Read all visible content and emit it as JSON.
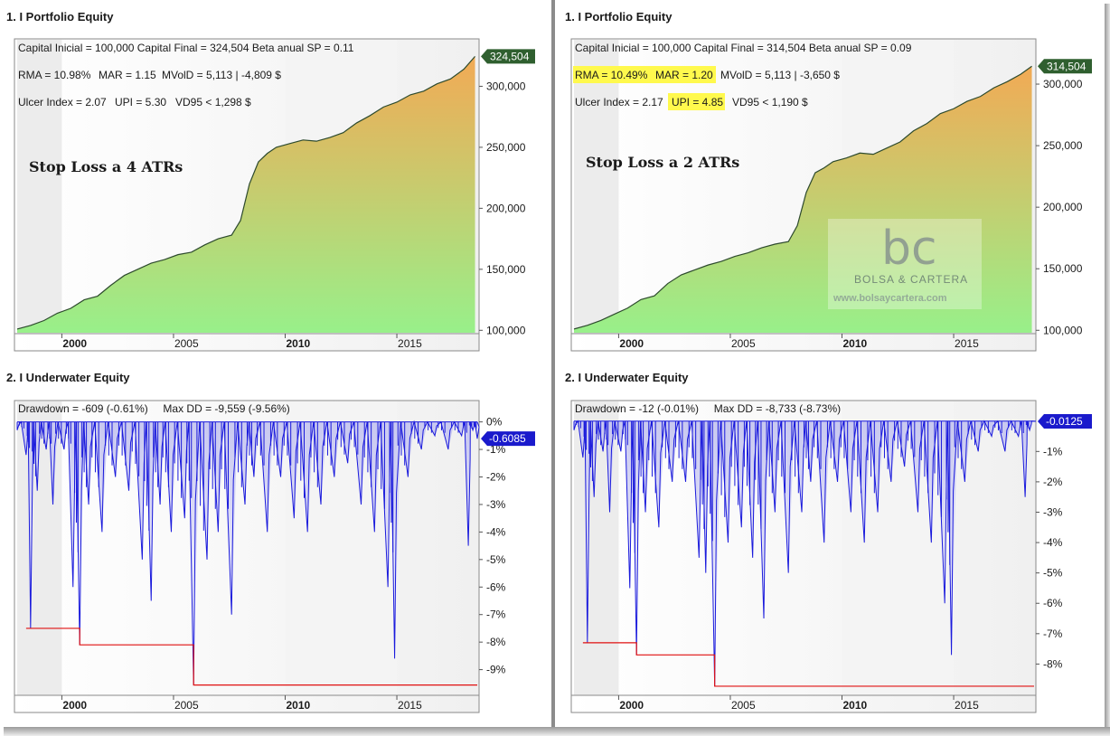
{
  "colors": {
    "equity_top": "#f2aa55",
    "equity_bottom": "#98f08a",
    "equity_line": "#2d4a2d",
    "flag_equity": "#2f5f2f",
    "underwater_line": "#1a1adc",
    "underwater_fill": "#c8c8f0",
    "maxdd_line": "#e01010",
    "flag_underwater": "#1a1acc",
    "highlight": "#fff94d"
  },
  "left": {
    "equity": {
      "title": "1. I Portfolio Equity",
      "info_line1": "Capital Inicial = 100,000  Capital Final = 324,504  Beta anual SP = 0.11",
      "info_line2": {
        "rma": "RMA = 10.98%",
        "mar": "MAR = 1.15",
        "rest": "MVolD = 5,113 | -4,809 $"
      },
      "info_line3": {
        "ulcer": "Ulcer Index = 2.07",
        "upi": "UPI = 5.30",
        "rest": "VD95 < 1,298 $"
      },
      "annotation": "Stop Loss a 4 ATRs",
      "last_value_label": "324,504"
    },
    "underwater": {
      "title": "2. I Underwater Equity",
      "info": "Drawdown = -609 (-0.61%)     Max DD = -9,559 (-9.56%)",
      "last_value_label": "-0.6085"
    }
  },
  "right": {
    "equity": {
      "title": "1. I Portfolio Equity",
      "info_line1": "Capital Inicial = 100,000  Capital Final = 314,504  Beta anual SP = 0.09",
      "info_line2": {
        "rma": "RMA = 10.49%",
        "mar": "MAR = 1.20",
        "rest": "MVolD = 5,113 | -3,650 $"
      },
      "info_line3": {
        "ulcer": "Ulcer Index = 2.17",
        "upi": "UPI = 4.85",
        "rest": "VD95 < 1,190 $"
      },
      "annotation": "Stop Loss a 2 ATRs",
      "last_value_label": "314,504"
    },
    "underwater": {
      "title": "2. I Underwater Equity",
      "info": "Drawdown = -12 (-0.01%)     Max DD = -8,733 (-8.73%)",
      "last_value_label": "-0.0125"
    }
  },
  "watermark": {
    "logo": "bc",
    "name": "BOLSA & CARTERA",
    "url": "www.bolsaycartera.com"
  },
  "chart_data": [
    {
      "type": "area",
      "title": "1. I Portfolio Equity",
      "annotation": "Stop Loss a 4 ATRs",
      "x_ticks": [
        "2000",
        "2005",
        "2010",
        "2015"
      ],
      "y_ticks": [
        "100,000",
        "150,000",
        "200,000",
        "250,000",
        "300,000"
      ],
      "xlim": [
        1998.0,
        2018.6
      ],
      "ylim": [
        98000,
        327000
      ],
      "grid": false,
      "series": [
        {
          "x": [
            1998.0,
            1998.6,
            1999.2,
            1999.8,
            2000.4,
            2001.0,
            2001.6,
            2002.2,
            2002.8,
            2003.4,
            2004.0,
            2004.6,
            2005.2,
            2005.8,
            2006.4,
            2007.0,
            2007.6,
            2008.0,
            2008.4,
            2008.8,
            2009.2,
            2009.6,
            2010.2,
            2010.8,
            2011.4,
            2012.0,
            2012.6,
            2013.2,
            2013.8,
            2014.4,
            2015.0,
            2015.6,
            2016.2,
            2016.8,
            2017.4,
            2018.0,
            2018.5
          ],
          "y": [
            101000,
            104000,
            108000,
            114000,
            118000,
            125000,
            128000,
            137000,
            145000,
            150000,
            155000,
            158000,
            162000,
            164000,
            170000,
            175000,
            178000,
            190000,
            220000,
            238000,
            245000,
            250000,
            253000,
            256000,
            255000,
            258000,
            262000,
            270000,
            276000,
            283000,
            287000,
            293000,
            296000,
            302000,
            306000,
            314000,
            324504
          ]
        }
      ]
    },
    {
      "type": "area",
      "title": "1. I Portfolio Equity",
      "annotation": "Stop Loss a 2 ATRs",
      "x_ticks": [
        "2000",
        "2005",
        "2010",
        "2015"
      ],
      "y_ticks": [
        "100,000",
        "150,000",
        "200,000",
        "250,000",
        "300,000"
      ],
      "xlim": [
        1998.0,
        2018.6
      ],
      "ylim": [
        98000,
        325000
      ],
      "grid": false,
      "series": [
        {
          "x": [
            1998.0,
            1998.6,
            1999.2,
            1999.8,
            2000.4,
            2001.0,
            2001.6,
            2002.2,
            2002.8,
            2003.4,
            2004.0,
            2004.6,
            2005.2,
            2005.8,
            2006.4,
            2007.0,
            2007.6,
            2008.0,
            2008.4,
            2008.8,
            2009.2,
            2009.6,
            2010.2,
            2010.8,
            2011.4,
            2012.0,
            2012.6,
            2013.2,
            2013.8,
            2014.4,
            2015.0,
            2015.6,
            2016.2,
            2016.8,
            2017.4,
            2018.0,
            2018.5
          ],
          "y": [
            101000,
            104000,
            108000,
            113000,
            118000,
            125000,
            128000,
            138000,
            145000,
            149000,
            153000,
            156000,
            160000,
            163000,
            167000,
            170000,
            172000,
            185000,
            212000,
            228000,
            232000,
            237000,
            240000,
            244000,
            243000,
            248000,
            253000,
            262000,
            268000,
            276000,
            280000,
            286000,
            290000,
            297000,
            302000,
            308000,
            314504
          ]
        }
      ]
    },
    {
      "type": "area",
      "title": "2. I Underwater Equity",
      "x_ticks": [
        "2000",
        "2005",
        "2010",
        "2015"
      ],
      "y_ticks": [
        "0%",
        "-1%",
        "-2%",
        "-3%",
        "-4%",
        "-5%",
        "-6%",
        "-7%",
        "-8%",
        "-9%"
      ],
      "xlim": [
        1998.0,
        2018.6
      ],
      "ylim": [
        -9.9,
        0.25
      ],
      "grid": false,
      "series": [
        {
          "name": "Drawdown %",
          "x": [
            1998.0,
            1998.4,
            1998.6,
            1998.9,
            1999.3,
            1999.6,
            2000.1,
            2000.5,
            2000.8,
            2001.2,
            2001.8,
            2002.4,
            2003.0,
            2003.6,
            2004.0,
            2004.4,
            2004.9,
            2005.5,
            2005.9,
            2006.5,
            2007.0,
            2007.6,
            2008.2,
            2008.6,
            2009.2,
            2009.8,
            2010.4,
            2011.0,
            2011.6,
            2012.2,
            2012.8,
            2013.4,
            2014.0,
            2014.6,
            2014.9,
            2015.5,
            2016.1,
            2016.7,
            2017.3,
            2017.9,
            2018.2,
            2018.4,
            2018.6
          ],
          "y": [
            -0.3,
            -1.2,
            -7.5,
            -2.5,
            -1.0,
            -3.0,
            -1.0,
            -6.0,
            -8.1,
            -3.0,
            -4.0,
            -2.0,
            -2.5,
            -5.0,
            -6.5,
            -3.0,
            -4.0,
            -3.5,
            -9.56,
            -5.0,
            -4.0,
            -7.0,
            -3.0,
            -2.0,
            -4.0,
            -2.0,
            -3.5,
            -4.0,
            -3.0,
            -2.0,
            -1.5,
            -3.0,
            -4.0,
            -6.0,
            -8.6,
            -2.0,
            -1.0,
            -0.5,
            -1.0,
            -0.5,
            -4.5,
            -0.3,
            -0.61
          ]
        },
        {
          "name": "Max DD",
          "x": [
            1998.4,
            2000.8,
            2000.8,
            2005.9,
            2005.9,
            2018.6
          ],
          "y": [
            -7.5,
            -7.5,
            -8.1,
            -8.1,
            -9.56,
            -9.56
          ]
        }
      ]
    },
    {
      "type": "area",
      "title": "2. I Underwater Equity",
      "x_ticks": [
        "2000",
        "2005",
        "2010",
        "2015"
      ],
      "y_ticks": [
        "-1%",
        "-2%",
        "-3%",
        "-4%",
        "-5%",
        "-6%",
        "-7%",
        "-8%"
      ],
      "xlim": [
        1998.0,
        2018.6
      ],
      "ylim": [
        -9.0,
        0.2
      ],
      "grid": false,
      "series": [
        {
          "name": "Drawdown %",
          "x": [
            1998.0,
            1998.4,
            1998.6,
            1998.9,
            1999.3,
            1999.6,
            2000.1,
            2000.5,
            2000.8,
            2001.2,
            2001.8,
            2002.4,
            2003.0,
            2003.6,
            2003.9,
            2004.3,
            2004.9,
            2005.5,
            2006.0,
            2006.5,
            2007.0,
            2007.6,
            2008.2,
            2008.6,
            2009.2,
            2009.8,
            2010.4,
            2011.0,
            2011.6,
            2012.2,
            2012.8,
            2013.4,
            2014.0,
            2014.6,
            2014.9,
            2015.5,
            2016.1,
            2016.7,
            2017.3,
            2017.9,
            2018.2,
            2018.4,
            2018.6
          ],
          "y": [
            -0.3,
            -1.2,
            -7.3,
            -2.5,
            -1.0,
            -3.0,
            -1.0,
            -5.5,
            -7.7,
            -3.0,
            -3.5,
            -2.0,
            -2.0,
            -4.5,
            -5.0,
            -8.73,
            -4.0,
            -3.5,
            -4.5,
            -6.5,
            -3.0,
            -5.0,
            -3.0,
            -2.0,
            -4.0,
            -2.0,
            -3.0,
            -4.0,
            -3.0,
            -2.0,
            -1.5,
            -3.0,
            -4.0,
            -6.0,
            -7.7,
            -2.0,
            -1.0,
            -0.5,
            -1.0,
            -0.5,
            -2.5,
            -0.3,
            -0.01
          ]
        },
        {
          "name": "Max DD",
          "x": [
            1998.4,
            2000.8,
            2000.8,
            2004.3,
            2004.3,
            2018.6
          ],
          "y": [
            -7.3,
            -7.3,
            -7.7,
            -7.7,
            -8.73,
            -8.73
          ]
        }
      ]
    }
  ]
}
